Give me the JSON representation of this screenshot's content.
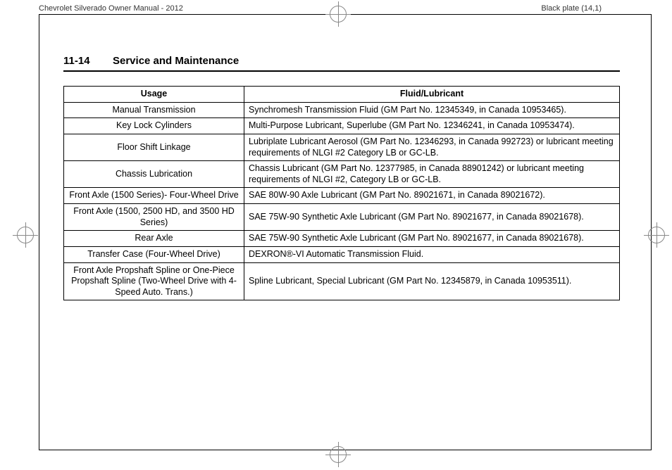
{
  "print_header": {
    "left": "Chevrolet Silverado Owner Manual - 2012",
    "right": "Black plate (14,1)"
  },
  "section": {
    "page_no": "11-14",
    "title": "Service and Maintenance"
  },
  "table": {
    "headers": {
      "usage": "Usage",
      "fluid": "Fluid/Lubricant"
    },
    "rows": [
      {
        "usage": "Manual Transmission",
        "fluid": "Synchromesh Transmission Fluid (GM Part No. 12345349, in Canada 10953465)."
      },
      {
        "usage": "Key Lock Cylinders",
        "fluid": "Multi-Purpose Lubricant, Superlube (GM Part No. 12346241, in Canada 10953474)."
      },
      {
        "usage": "Floor Shift Linkage",
        "fluid": "Lubriplate Lubricant Aerosol (GM Part No. 12346293, in Canada 992723) or lubricant meeting requirements of NLGI #2 Category LB or GC-LB."
      },
      {
        "usage": "Chassis Lubrication",
        "fluid": "Chassis Lubricant (GM Part No. 12377985, in Canada 88901242) or lubricant meeting requirements of NLGI #2, Category LB or GC-LB."
      },
      {
        "usage": "Front Axle (1500 Series)- Four-Wheel Drive",
        "fluid": "SAE 80W-90 Axle Lubricant (GM Part No. 89021671, in Canada 89021672)."
      },
      {
        "usage": "Front Axle (1500, 2500 HD, and 3500 HD Series)",
        "fluid": "SAE 75W-90 Synthetic Axle Lubricant (GM Part No. 89021677, in Canada 89021678)."
      },
      {
        "usage": "Rear Axle",
        "fluid": "SAE 75W-90 Synthetic Axle Lubricant (GM Part No. 89021677, in Canada 89021678)."
      },
      {
        "usage": "Transfer Case (Four-Wheel Drive)",
        "fluid": "DEXRON®-VI Automatic Transmission Fluid."
      },
      {
        "usage": "Front Axle Propshaft Spline or One-Piece Propshaft Spline (Two-Wheel Drive with 4-Speed Auto. Trans.)",
        "fluid": "Spline Lubricant, Special Lubricant (GM Part No. 12345879, in Canada 10953511)."
      }
    ]
  }
}
